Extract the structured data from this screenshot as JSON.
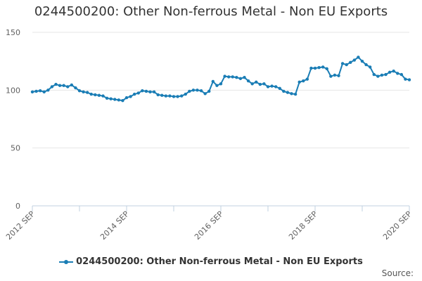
{
  "chart_data": {
    "type": "line",
    "title": "0244500200: Other Non-ferrous Metal - Non EU Exports",
    "xlabel": "",
    "ylabel": "",
    "ylim": [
      0,
      150
    ],
    "yticks": [
      0,
      50,
      100,
      150
    ],
    "xtick_labels": [
      "2012 SEP",
      "2014 SEP",
      "2016 SEP",
      "2018 SEP",
      "2020 SEP"
    ],
    "grid": true,
    "legend_position": "bottom",
    "series": [
      {
        "name": "0244500200: Other Non-ferrous Metal - Non EU Exports",
        "color": "#1a7db5",
        "start": "2012-09",
        "frequency": "monthly",
        "values": [
          98.5,
          99,
          99.5,
          98.5,
          100,
          103,
          105,
          104,
          104,
          103,
          104.5,
          102,
          99.5,
          98.5,
          98,
          96.5,
          96,
          95.5,
          95,
          93,
          92.5,
          92,
          91.5,
          91,
          93.5,
          94.5,
          96.5,
          97.5,
          99.5,
          99,
          98.5,
          98.5,
          96,
          95.5,
          95,
          95,
          94.5,
          94.5,
          95,
          96.5,
          99,
          100,
          100,
          99.5,
          97,
          99,
          107.5,
          104,
          105.5,
          112,
          111.5,
          111.5,
          111,
          110,
          111,
          108,
          105.5,
          107,
          105,
          105.5,
          103,
          103.5,
          103,
          101.5,
          99,
          98,
          97,
          96.5,
          107,
          108,
          109.5,
          119,
          119,
          119.5,
          120,
          118.5,
          112,
          113,
          112.5,
          123,
          122,
          124,
          126,
          128.5,
          125,
          122,
          120,
          113.5,
          112,
          113,
          113.5,
          115.5,
          116.5,
          114.5,
          113.5,
          109.5,
          109
        ]
      }
    ]
  },
  "legend": {
    "label": "0244500200: Other Non-ferrous Metal - Non EU Exports"
  },
  "footer": {
    "source_label": "Source:"
  }
}
